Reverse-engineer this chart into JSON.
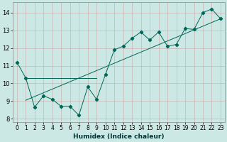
{
  "xlabel": "Humidex (Indice chaleur)",
  "bg_color": "#cce8e4",
  "grid_color": "#b0c8c4",
  "line_color": "#006655",
  "xlim": [
    -0.5,
    23.5
  ],
  "ylim": [
    7.8,
    14.6
  ],
  "xticks": [
    0,
    1,
    2,
    3,
    4,
    5,
    6,
    7,
    8,
    9,
    10,
    11,
    12,
    13,
    14,
    15,
    16,
    17,
    18,
    19,
    20,
    21,
    22,
    23
  ],
  "yticks": [
    8,
    9,
    10,
    11,
    12,
    13,
    14
  ],
  "scatter_x": [
    0,
    1,
    2,
    3,
    4,
    5,
    6,
    7,
    8,
    9,
    10,
    11,
    12,
    13,
    14,
    15,
    16,
    17,
    18,
    19,
    20,
    21,
    22,
    23
  ],
  "scatter_y": [
    11.2,
    10.3,
    8.65,
    9.3,
    9.1,
    8.7,
    8.7,
    8.2,
    9.8,
    9.1,
    10.5,
    11.9,
    12.1,
    12.55,
    12.9,
    12.45,
    12.9,
    12.1,
    12.2,
    13.1,
    13.05,
    14.0,
    14.2,
    13.65
  ],
  "flat_line_x": [
    1,
    9
  ],
  "flat_line_y": [
    10.3,
    10.3
  ],
  "trend_x": [
    1,
    23
  ],
  "trend_y": [
    9.05,
    13.65
  ]
}
